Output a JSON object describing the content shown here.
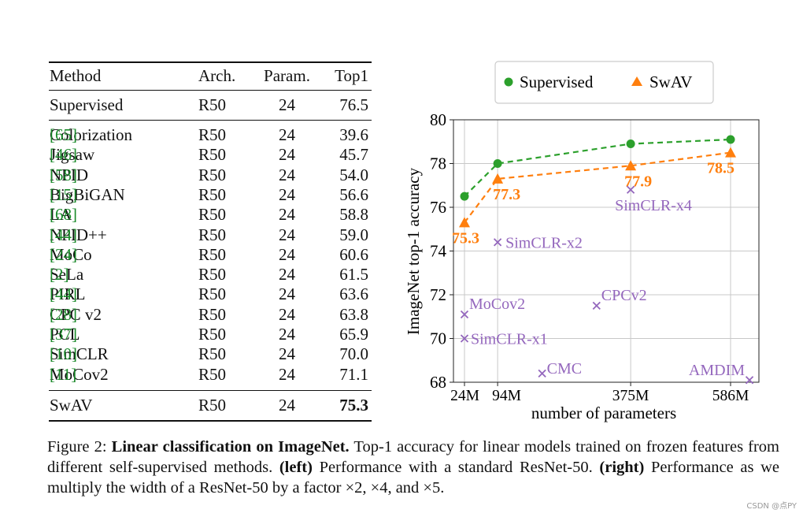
{
  "table": {
    "headers": [
      "Method",
      "Arch.",
      "Param.",
      "Top1"
    ],
    "supervised": {
      "method": "Supervised",
      "arch": "R50",
      "param": "24",
      "top1": "76.5"
    },
    "rows": [
      {
        "method": "Colorization ",
        "ref": "[65]",
        "arch": "R50",
        "param": "24",
        "top1": "39.6"
      },
      {
        "method": "Jigsaw ",
        "ref": "[46]",
        "arch": "R50",
        "param": "24",
        "top1": "45.7"
      },
      {
        "method": "NPID ",
        "ref": "[58]",
        "arch": "R50",
        "param": "24",
        "top1": "54.0"
      },
      {
        "method": "BigBiGAN ",
        "ref": "[15]",
        "arch": "R50",
        "param": "24",
        "top1": "56.6"
      },
      {
        "method": "LA ",
        "ref": "[68]",
        "arch": "R50",
        "param": "24",
        "top1": "58.8"
      },
      {
        "method": "NPID++ ",
        "ref": "[44]",
        "arch": "R50",
        "param": "24",
        "top1": "59.0"
      },
      {
        "method": "MoCo ",
        "ref": "[24]",
        "arch": "R50",
        "param": "24",
        "top1": "60.6"
      },
      {
        "method": "SeLa ",
        "ref": "[2]",
        "arch": "R50",
        "param": "24",
        "top1": "61.5"
      },
      {
        "method": "PIRL ",
        "ref": "[44]",
        "arch": "R50",
        "param": "24",
        "top1": "63.6"
      },
      {
        "method": "CPC v2 ",
        "ref": "[28]",
        "arch": "R50",
        "param": "24",
        "top1": "63.8"
      },
      {
        "method": "PCL ",
        "ref": "[37]",
        "arch": "R50",
        "param": "24",
        "top1": "65.9"
      },
      {
        "method": "SimCLR ",
        "ref": "[10]",
        "arch": "R50",
        "param": "24",
        "top1": "70.0"
      },
      {
        "method": "MoCov2 ",
        "ref": "[11]",
        "arch": "R50",
        "param": "24",
        "top1": "71.1"
      }
    ],
    "swav": {
      "method": "SwAV",
      "arch": "R50",
      "param": "24",
      "top1": "75.3"
    }
  },
  "chart_data": {
    "type": "scatter",
    "xlabel": "number of parameters",
    "ylabel": "ImageNet top-1 accuracy",
    "ylim": [
      68,
      80
    ],
    "xlim": [
      0,
      630
    ],
    "yticks": [
      68,
      70,
      72,
      74,
      76,
      78,
      80
    ],
    "xticks": [
      {
        "value": 24,
        "label": "24M"
      },
      {
        "value": 94,
        "label": "94M"
      },
      {
        "value": 375,
        "label": "375M"
      },
      {
        "value": 586,
        "label": "586M"
      }
    ],
    "grid": true,
    "legend_position": "top",
    "series": [
      {
        "name": "Supervised",
        "marker": "circle",
        "style": "dashed-line",
        "color": "#2ca02c",
        "x": [
          24,
          94,
          375,
          586
        ],
        "y": [
          76.5,
          78.0,
          78.9,
          79.1
        ]
      },
      {
        "name": "SwAV",
        "marker": "triangle",
        "style": "dashed-line",
        "color": "#ff7f0e",
        "x": [
          24,
          94,
          375,
          586
        ],
        "y": [
          75.3,
          77.3,
          77.9,
          78.5
        ],
        "labels": [
          "75.3",
          "77.3",
          "77.9",
          "78.5"
        ]
      }
    ],
    "others": {
      "color": "#9467bd",
      "marker": "x",
      "points": [
        {
          "name": "SimCLR-x1",
          "x": 24,
          "y": 70.0
        },
        {
          "name": "MoCov2",
          "x": 24,
          "y": 71.1
        },
        {
          "name": "SimCLR-x2",
          "x": 94,
          "y": 74.4
        },
        {
          "name": "SimCLR-x4",
          "x": 375,
          "y": 76.8
        },
        {
          "name": "CPCv2",
          "x": 303,
          "y": 71.5
        },
        {
          "name": "CMC",
          "x": 188,
          "y": 68.4
        },
        {
          "name": "AMDIM",
          "x": 626,
          "y": 68.1
        }
      ]
    }
  },
  "caption": {
    "prefix": "Figure 2: ",
    "title": "Linear classification on ImageNet.",
    "part1": " Top-1 accuracy for linear models trained on frozen features from different self-supervised methods. ",
    "left_tag": "(left)",
    "part2": " Performance with a standard ResNet-50. ",
    "right_tag": "(right)",
    "part3": " Performance as we multiply the width of a ResNet-50 by a factor ×2, ×4, and ×5."
  },
  "watermark": "CSDN @点PY"
}
